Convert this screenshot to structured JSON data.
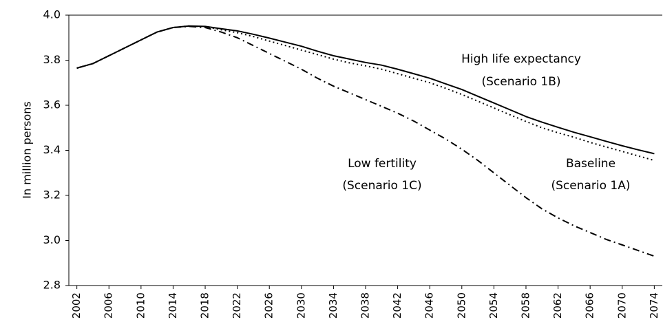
{
  "chart_data": {
    "type": "line",
    "y_label": "In million persons",
    "x": [
      2002,
      2004,
      2006,
      2008,
      2010,
      2012,
      2014,
      2016,
      2018,
      2020,
      2022,
      2024,
      2026,
      2028,
      2030,
      2032,
      2034,
      2036,
      2038,
      2040,
      2042,
      2044,
      2046,
      2048,
      2050,
      2052,
      2054,
      2056,
      2058,
      2060,
      2062,
      2064,
      2066,
      2068,
      2070,
      2072,
      2074
    ],
    "series": [
      {
        "name": "High life expectancy (Scenario 1B)",
        "color": "#000000",
        "style": "solid",
        "values": [
          3.765,
          3.785,
          3.82,
          3.855,
          3.89,
          3.925,
          3.945,
          3.952,
          3.95,
          3.94,
          3.93,
          3.915,
          3.898,
          3.88,
          3.862,
          3.84,
          3.82,
          3.805,
          3.79,
          3.778,
          3.76,
          3.74,
          3.72,
          3.695,
          3.67,
          3.64,
          3.61,
          3.58,
          3.55,
          3.525,
          3.502,
          3.48,
          3.46,
          3.44,
          3.42,
          3.402,
          3.385
        ]
      },
      {
        "name": "Baseline (Scenario 1A)",
        "color": "#000000",
        "style": "dotted",
        "values": [
          3.765,
          3.785,
          3.82,
          3.855,
          3.89,
          3.925,
          3.945,
          3.952,
          3.948,
          3.935,
          3.922,
          3.905,
          3.885,
          3.865,
          3.845,
          3.825,
          3.805,
          3.788,
          3.775,
          3.76,
          3.74,
          3.72,
          3.7,
          3.675,
          3.648,
          3.618,
          3.588,
          3.558,
          3.528,
          3.5,
          3.478,
          3.458,
          3.435,
          3.415,
          3.395,
          3.375,
          3.355
        ]
      },
      {
        "name": "Low fertility (Scenario 1C)",
        "color": "#000000",
        "style": "dashdot",
        "values": [
          3.765,
          3.785,
          3.82,
          3.855,
          3.89,
          3.925,
          3.945,
          3.95,
          3.945,
          3.925,
          3.9,
          3.865,
          3.83,
          3.795,
          3.76,
          3.72,
          3.685,
          3.655,
          3.625,
          3.595,
          3.565,
          3.53,
          3.49,
          3.45,
          3.405,
          3.355,
          3.3,
          3.245,
          3.19,
          3.14,
          3.1,
          3.065,
          3.035,
          3.005,
          2.98,
          2.955,
          2.93
        ]
      }
    ],
    "annotations": [
      "High life expectancy",
      "(Scenario 1B)",
      "Low fertility",
      "(Scenario 1C)",
      "Baseline",
      "(Scenario 1A)"
    ],
    "xlim": [
      2001,
      2075
    ],
    "xticks": [
      2002,
      2006,
      2010,
      2014,
      2018,
      2022,
      2026,
      2030,
      2034,
      2038,
      2042,
      2046,
      2050,
      2054,
      2058,
      2062,
      2066,
      2070,
      2074
    ],
    "ylim": [
      2.8,
      4.0
    ],
    "yticks": [
      {
        "value": 2.8,
        "label": "2.8"
      },
      {
        "value": 3.0,
        "label": "3.0"
      },
      {
        "value": 3.2,
        "label": "3.2"
      },
      {
        "value": 3.4,
        "label": "3.4"
      },
      {
        "value": 3.6,
        "label": "3.6"
      },
      {
        "value": 3.8,
        "label": "3.8"
      },
      {
        "value": 4.0,
        "label": "4.0"
      }
    ],
    "grid": false
  }
}
